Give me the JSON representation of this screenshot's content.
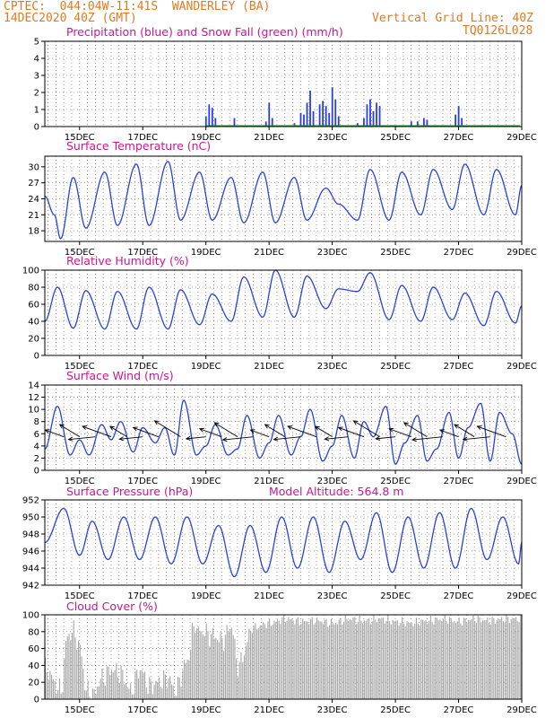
{
  "header": {
    "line1": "CPTEC:  044:04W-11:41S  WANDERLEY (BA)",
    "line2": "14DEC2020 40Z (GMT)",
    "vgrid": "Vertical Grid Line: 40Z",
    "code": "TQ0126L028"
  },
  "colors": {
    "header": "#e07a1f",
    "title": "#d0148c",
    "line": "#2a3fe0",
    "snow": "#1a9a1a",
    "cloud": "#a6a6a6"
  },
  "date_labels": [
    "15DEC",
    "17DEC",
    "19DEC",
    "21DEC",
    "23DEC",
    "25DEC",
    "27DEC",
    "29DEC"
  ],
  "panels": {
    "precip": {
      "title": "Precipitation (blue) and Snow Fall (green) (mm/h)",
      "yticks": [
        "0",
        "1",
        "2",
        "3",
        "4",
        "5"
      ]
    },
    "temp": {
      "title": "Surface Temperature (nC)",
      "yticks": [
        "18",
        "21",
        "24",
        "27",
        "30"
      ]
    },
    "rh": {
      "title": "Relative Humidity (%)",
      "yticks": [
        "0",
        "20",
        "40",
        "60",
        "80",
        "100"
      ]
    },
    "wind": {
      "title": "Surface Wind (m/s)",
      "yticks": [
        "0",
        "2",
        "4",
        "6",
        "8",
        "10",
        "12",
        "14"
      ]
    },
    "pres": {
      "title": "Surface Pressure (hPa)",
      "altitude": "Model Altitude: 564.8 m",
      "yticks": [
        "942",
        "944",
        "946",
        "948",
        "950",
        "952"
      ]
    },
    "cloud": {
      "title": "Cloud Cover (%)",
      "yticks": [
        "0",
        "20",
        "40",
        "60",
        "80",
        "100"
      ]
    }
  },
  "chart_data": [
    {
      "type": "bar",
      "title": "Precipitation (blue) and Snow Fall (green) (mm/h)",
      "x_unit": "day of Dec 2020",
      "ylim": [
        0,
        5
      ],
      "series": [
        {
          "name": "Precipitation",
          "x": [
            19.0,
            19.1,
            19.2,
            19.3,
            19.9,
            20.9,
            21.0,
            21.1,
            21.8,
            22.0,
            22.1,
            22.2,
            22.3,
            22.4,
            22.6,
            22.7,
            22.8,
            22.9,
            23.0,
            23.1,
            23.2,
            23.8,
            24.0,
            24.1,
            24.2,
            24.3,
            24.4,
            24.5,
            25.5,
            25.7,
            25.9,
            26.0,
            26.9,
            27.0,
            27.1
          ],
          "values": [
            0.6,
            1.3,
            1.1,
            0.5,
            0.5,
            0.3,
            1.4,
            0.5,
            0.2,
            0.8,
            0.7,
            1.4,
            2.1,
            0.9,
            1.3,
            1.5,
            1.2,
            0.8,
            2.3,
            1.6,
            0.6,
            0.2,
            0.5,
            1.3,
            1.6,
            0.9,
            1.4,
            1.2,
            0.3,
            0.3,
            0.5,
            0.4,
            0.7,
            1.2,
            0.5
          ]
        }
      ]
    },
    {
      "type": "line",
      "title": "Surface Temperature (nC)",
      "ylim": [
        16,
        32
      ],
      "series": [
        {
          "x": [
            13.9,
            14.2,
            14.4,
            14.8,
            15.2,
            15.8,
            16.2,
            16.8,
            17.2,
            17.8,
            18.2,
            18.8,
            19.2,
            19.8,
            20.2,
            20.8,
            21.2,
            21.8,
            22.2,
            22.8,
            23.2,
            23.8,
            24.2,
            24.8,
            25.2,
            25.8,
            26.2,
            26.8,
            27.2,
            27.8,
            28.2,
            28.8,
            29.0
          ],
          "values": [
            24.5,
            21,
            16.5,
            28,
            18.5,
            29,
            19,
            30.5,
            19,
            31,
            20,
            29,
            20,
            28,
            19.5,
            29,
            19.5,
            28,
            20,
            26,
            23,
            20,
            29.5,
            20,
            29,
            21,
            29.5,
            22,
            30.5,
            21,
            29.5,
            21,
            26.5
          ]
        }
      ]
    },
    {
      "type": "line",
      "title": "Relative Humidity (%)",
      "ylim": [
        0,
        100
      ],
      "series": [
        {
          "x": [
            13.9,
            14.3,
            14.8,
            15.2,
            15.8,
            16.2,
            16.8,
            17.2,
            17.8,
            18.2,
            18.8,
            19.2,
            19.8,
            20.2,
            20.8,
            21.2,
            21.8,
            22.2,
            22.8,
            23.2,
            23.8,
            24.2,
            24.8,
            25.2,
            25.8,
            26.2,
            26.8,
            27.2,
            27.8,
            28.2,
            28.8,
            29.0
          ],
          "values": [
            40,
            80,
            32,
            76,
            31,
            75,
            31,
            80,
            31,
            77,
            36,
            72,
            40,
            92,
            45,
            100,
            45,
            93,
            55,
            78,
            75,
            97,
            42,
            82,
            40,
            80,
            42,
            73,
            35,
            75,
            38,
            58
          ]
        }
      ]
    },
    {
      "type": "line",
      "title": "Surface Wind (m/s)",
      "ylim": [
        0,
        14
      ],
      "series": [
        {
          "name": "Wind speed",
          "x": [
            13.9,
            14.3,
            14.7,
            15.0,
            15.3,
            15.7,
            16.0,
            16.3,
            16.7,
            17.0,
            17.4,
            17.7,
            18.0,
            18.3,
            18.7,
            19.0,
            19.3,
            19.7,
            20.0,
            20.3,
            20.7,
            21.0,
            21.3,
            21.7,
            22.0,
            22.3,
            22.7,
            23.0,
            23.3,
            23.7,
            24.0,
            24.3,
            24.7,
            25.0,
            25.3,
            25.7,
            26.0,
            26.3,
            26.7,
            27.0,
            27.3,
            27.7,
            28.0,
            28.3,
            28.7,
            29.0
          ],
          "values": [
            3.5,
            10.5,
            2.5,
            5.0,
            2.5,
            7.5,
            5.0,
            8.0,
            3.0,
            7.0,
            4.5,
            7.0,
            2.5,
            11.5,
            2.5,
            4.0,
            7.5,
            2.5,
            3.5,
            9.0,
            2.0,
            4.5,
            9.0,
            2.5,
            5.5,
            10.0,
            1.5,
            4.0,
            9.0,
            2.0,
            8.0,
            5.5,
            10.5,
            1.0,
            4.5,
            9.0,
            1.5,
            3.5,
            9.5,
            2.0,
            7.0,
            11.0,
            1.5,
            9.5,
            6.0,
            1.0
          ]
        }
      ]
    },
    {
      "type": "line",
      "title": "Surface Pressure (hPa)",
      "ylim": [
        942,
        952
      ],
      "series": [
        {
          "x": [
            13.9,
            14.5,
            15.0,
            15.4,
            15.9,
            16.4,
            16.9,
            17.4,
            17.9,
            18.4,
            18.9,
            19.4,
            19.9,
            20.4,
            20.9,
            21.4,
            21.9,
            22.4,
            22.9,
            23.4,
            23.9,
            24.4,
            24.9,
            25.4,
            25.9,
            26.4,
            26.9,
            27.4,
            27.9,
            28.4,
            28.9,
            29.0
          ],
          "values": [
            947.0,
            951.0,
            945.5,
            949.5,
            945.0,
            950.0,
            945.0,
            950.0,
            944.5,
            950.0,
            944.5,
            949.0,
            943.0,
            949.0,
            943.5,
            950.0,
            944.0,
            950.0,
            943.5,
            949.5,
            945.0,
            950.5,
            943.5,
            950.0,
            944.0,
            950.5,
            944.0,
            951.0,
            945.0,
            950.0,
            944.5,
            947.0
          ]
        }
      ]
    },
    {
      "type": "area",
      "title": "Cloud Cover (%)",
      "ylim": [
        0,
        100
      ],
      "series": [
        {
          "x": [
            13.9,
            14.4,
            14.6,
            14.8,
            15.0,
            15.2,
            15.4,
            15.7,
            16.0,
            16.3,
            16.6,
            16.9,
            17.2,
            17.5,
            17.8,
            18.0,
            18.4,
            18.6,
            18.9,
            19.2,
            19.5,
            19.8,
            20.0,
            20.5,
            21.0,
            21.5,
            22.0,
            22.5,
            23.0,
            23.5,
            24.0,
            24.5,
            25.0,
            25.5,
            26.0,
            26.5,
            27.0,
            27.5,
            28.0,
            28.5,
            29.0
          ],
          "values": [
            35,
            10,
            75,
            80,
            60,
            10,
            5,
            25,
            35,
            30,
            10,
            35,
            15,
            20,
            25,
            10,
            45,
            85,
            80,
            75,
            70,
            85,
            40,
            85,
            90,
            95,
            92,
            93,
            90,
            95,
            93,
            95,
            92,
            90,
            93,
            95,
            92,
            95,
            93,
            95,
            95
          ]
        }
      ]
    }
  ]
}
